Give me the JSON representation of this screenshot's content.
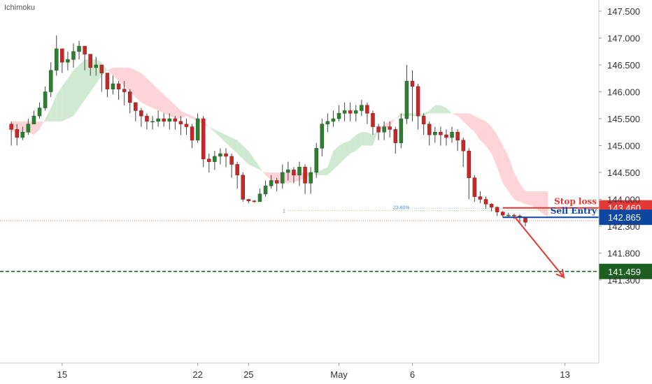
{
  "indicator_label": "Ichimoku",
  "chart_data": {
    "type": "candlestick",
    "indicator": "Ichimoku",
    "y_axis": {
      "ylim": [
        141.05,
        147.75
      ],
      "tick_labels": [
        "147.500",
        "147.000",
        "146.500",
        "146.000",
        "145.500",
        "145.000",
        "144.500",
        "144.000",
        "142.300",
        "141.800",
        "141.300"
      ]
    },
    "x_axis": {
      "tick_labels": [
        {
          "label": "15",
          "index": 9
        },
        {
          "label": "22",
          "index": 33
        },
        {
          "label": "25",
          "index": 42
        },
        {
          "label": "May",
          "index": 58
        },
        {
          "label": "6",
          "index": 71
        },
        {
          "label": "13",
          "index": 98
        }
      ],
      "x_range": [
        -2,
        104
      ]
    },
    "closes": [
      145.3,
      145.15,
      145.25,
      145.4,
      145.55,
      145.7,
      146.0,
      146.4,
      146.8,
      146.55,
      146.6,
      146.75,
      146.85,
      146.7,
      146.45,
      146.5,
      146.35,
      146.05,
      146.15,
      146.05,
      146.0,
      145.8,
      145.65,
      145.55,
      145.45,
      145.45,
      145.5,
      145.45,
      145.5,
      145.45,
      145.4,
      145.35,
      145.1,
      145.5,
      144.75,
      144.7,
      144.8,
      144.85,
      144.8,
      144.65,
      144.45,
      144.0,
      143.9,
      143.85,
      144.1,
      144.25,
      144.35,
      144.3,
      144.5,
      144.55,
      144.45,
      144.6,
      144.3,
      144.5,
      144.95,
      145.4,
      145.45,
      145.5,
      145.6,
      145.65,
      145.6,
      145.65,
      145.75,
      145.6,
      145.35,
      145.25,
      145.35,
      145.3,
      145.05,
      145.5,
      146.2,
      146.1,
      145.55,
      145.4,
      145.2,
      145.25,
      145.2,
      145.15,
      145.25,
      145.1,
      144.9,
      144.4,
      144.05,
      144.0,
      143.7,
      143.5,
      143.2,
      143.0,
      143.0,
      142.95,
      142.85,
      142.55
    ],
    "highs": [
      145.45,
      145.4,
      145.35,
      145.5,
      145.65,
      145.8,
      146.1,
      146.55,
      147.05,
      146.7,
      146.75,
      146.9,
      146.95,
      146.85,
      146.6,
      146.65,
      146.5,
      146.25,
      146.3,
      146.2,
      146.2,
      146.05,
      145.8,
      145.7,
      145.6,
      145.55,
      145.65,
      145.6,
      145.6,
      145.55,
      145.55,
      145.5,
      145.4,
      145.6,
      145.55,
      144.85,
      144.9,
      144.95,
      144.95,
      144.85,
      144.7,
      144.5,
      144.0,
      143.95,
      144.2,
      144.35,
      144.45,
      144.4,
      144.65,
      144.7,
      144.6,
      144.7,
      144.65,
      144.6,
      145.05,
      145.5,
      145.6,
      145.65,
      145.75,
      145.8,
      145.8,
      145.75,
      145.85,
      145.8,
      145.65,
      145.4,
      145.45,
      145.45,
      145.35,
      145.6,
      146.5,
      146.4,
      146.15,
      145.6,
      145.45,
      145.35,
      145.35,
      145.3,
      145.35,
      145.3,
      145.15,
      144.95,
      144.45,
      144.15,
      144.05,
      143.75,
      143.55,
      143.25,
      143.15,
      143.1,
      143.05,
      142.9
    ],
    "lows": [
      145.0,
      145.0,
      145.1,
      145.2,
      145.4,
      145.5,
      145.65,
      145.9,
      146.3,
      146.35,
      146.4,
      146.45,
      146.6,
      146.4,
      146.3,
      146.3,
      146.0,
      145.9,
      145.95,
      145.85,
      145.75,
      145.6,
      145.45,
      145.35,
      145.3,
      145.3,
      145.35,
      145.35,
      145.3,
      145.3,
      145.2,
      145.2,
      144.95,
      145.05,
      144.6,
      144.5,
      144.55,
      144.65,
      144.6,
      144.4,
      144.2,
      143.85,
      143.75,
      143.8,
      143.9,
      144.05,
      144.2,
      144.15,
      144.2,
      144.35,
      144.3,
      144.25,
      144.1,
      144.1,
      144.4,
      144.8,
      145.25,
      145.35,
      145.45,
      145.45,
      145.45,
      145.45,
      145.55,
      145.4,
      145.2,
      145.1,
      145.1,
      145.15,
      144.85,
      144.95,
      145.4,
      145.45,
      145.3,
      145.2,
      145.0,
      145.05,
      145.0,
      145.0,
      145.05,
      144.9,
      144.6,
      144.0,
      143.85,
      143.75,
      143.4,
      143.25,
      142.95,
      142.85,
      142.85,
      142.75,
      142.5,
      142.3
    ],
    "kumo": {
      "span_a": [
        145.25,
        145.28,
        145.22,
        145.25,
        145.2,
        145.3,
        145.5,
        145.7,
        145.95,
        146.1,
        146.25,
        146.4,
        146.5,
        146.6,
        146.6,
        146.6,
        146.55,
        146.4,
        146.3,
        146.2,
        146.1,
        146.0,
        145.9,
        145.8,
        145.75,
        145.7,
        145.65,
        145.6,
        145.55,
        145.5,
        145.5,
        145.55,
        145.5,
        145.45,
        145.4,
        145.35,
        145.3,
        145.25,
        145.2,
        145.15,
        145.1,
        145.0,
        144.9,
        144.75,
        144.6,
        144.45,
        144.35,
        144.3,
        144.3,
        144.3,
        144.32,
        144.35,
        144.4,
        144.45,
        144.5,
        144.55,
        144.6,
        144.9,
        145.0,
        145.05,
        145.1,
        145.2,
        145.25,
        145.25,
        145.2,
        145.3,
        145.3,
        145.35,
        145.5,
        145.6,
        145.6,
        145.6,
        145.55,
        145.6,
        145.65,
        145.75,
        145.75,
        145.7,
        145.6,
        145.55,
        145.45,
        145.35,
        145.25,
        145.1,
        145.0,
        144.85,
        144.6,
        144.3,
        144.15,
        144.0,
        143.85,
        143.7,
        143.6,
        143.4,
        143.1,
        142.9
      ],
      "span_b": [
        145.45,
        145.45,
        145.45,
        145.45,
        145.45,
        145.45,
        145.45,
        145.45,
        145.45,
        145.45,
        145.5,
        145.55,
        145.7,
        145.85,
        146.0,
        146.15,
        146.3,
        146.4,
        146.45,
        146.45,
        146.45,
        146.45,
        146.4,
        146.35,
        146.25,
        146.15,
        146.05,
        145.95,
        145.85,
        145.75,
        145.65,
        145.6,
        145.55,
        145.5,
        145.45,
        145.35,
        145.25,
        145.15,
        145.05,
        144.95,
        144.85,
        144.75,
        144.65,
        144.6,
        144.55,
        144.5,
        144.5,
        144.5,
        144.5,
        144.5,
        144.5,
        144.5,
        144.5,
        144.5,
        144.45,
        144.45,
        144.45,
        144.55,
        144.65,
        144.75,
        144.85,
        144.9,
        145.0,
        145.0,
        145.0,
        145.3,
        145.4,
        145.45,
        145.5,
        145.55,
        145.55,
        145.55,
        145.55,
        145.55,
        145.6,
        145.6,
        145.6,
        145.6,
        145.6,
        145.6,
        145.6,
        145.6,
        145.55,
        145.5,
        145.45,
        145.35,
        145.2,
        145.0,
        144.8,
        144.5,
        144.3,
        144.15,
        144.15,
        144.15,
        144.15,
        144.15
      ],
      "bullish_color": "#c8e6c9",
      "bearish_color": "#ffcdd2"
    },
    "candle_colors": {
      "up": "#2e7d32",
      "down": "#c62828",
      "wick": "#444444"
    },
    "levels": [
      {
        "name": "Stop loss",
        "value": 143.46,
        "label": "143.460",
        "color": "#e53935",
        "start_index": 87
      },
      {
        "name": "Sell Entry",
        "value": 142.865,
        "label": "142.865",
        "color": "#0d47a1",
        "start_index": 87
      },
      {
        "name": "",
        "value": 141.459,
        "label": "141.459",
        "color": "#1b5e20",
        "style": "dashed"
      }
    ],
    "fib_line": {
      "value": 143.3,
      "label": "23.60%",
      "left_label": "1",
      "color": "#9ccc65",
      "start_index": 49
    },
    "current_price_line": {
      "value": 142.65,
      "color": "#e57373"
    },
    "arrow": {
      "from": [
        89.2,
        142.85
      ],
      "to": [
        97.8,
        141.35
      ],
      "color": "#e53935"
    }
  }
}
